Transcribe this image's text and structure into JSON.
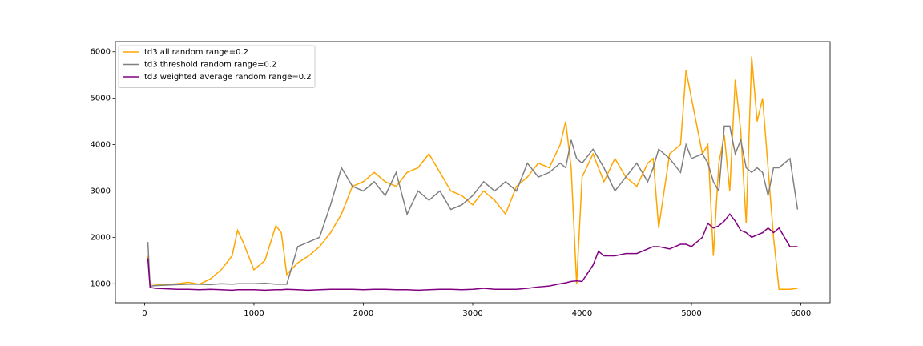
{
  "chart_data": {
    "type": "line",
    "x": [
      30,
      50,
      100,
      200,
      300,
      400,
      500,
      600,
      700,
      800,
      850,
      900,
      1000,
      1100,
      1200,
      1250,
      1300,
      1400,
      1500,
      1600,
      1700,
      1800,
      1900,
      2000,
      2100,
      2200,
      2300,
      2400,
      2500,
      2600,
      2700,
      2800,
      2900,
      3000,
      3100,
      3200,
      3300,
      3400,
      3500,
      3600,
      3700,
      3800,
      3850,
      3900,
      3950,
      4000,
      4100,
      4150,
      4200,
      4300,
      4400,
      4500,
      4600,
      4650,
      4700,
      4800,
      4900,
      4950,
      5000,
      5100,
      5150,
      5200,
      5250,
      5300,
      5350,
      5400,
      5450,
      5500,
      5550,
      5600,
      5650,
      5700,
      5750,
      5800,
      5900,
      5970
    ],
    "series": [
      {
        "name": "td3 all random range=0.2",
        "color": "#ffa500",
        "values": [
          1600,
          1000,
          990,
          980,
          1000,
          1030,
          990,
          1100,
          1300,
          1600,
          2150,
          1900,
          1300,
          1500,
          2250,
          2100,
          1200,
          1450,
          1600,
          1800,
          2100,
          2500,
          3100,
          3200,
          3400,
          3200,
          3100,
          3400,
          3500,
          3800,
          3400,
          3000,
          2900,
          2700,
          3000,
          2800,
          2500,
          3100,
          3300,
          3600,
          3500,
          4000,
          4500,
          3500,
          1000,
          3300,
          3800,
          3500,
          3200,
          3700,
          3300,
          3100,
          3600,
          3700,
          2200,
          3800,
          4000,
          5600,
          5000,
          3800,
          4000,
          1600,
          3600,
          4200,
          3000,
          5400,
          4300,
          2300,
          5900,
          4500,
          5000,
          3500,
          2000,
          880,
          880,
          900
        ]
      },
      {
        "name": "td3 threshold random range=0.2",
        "color": "#808080",
        "values": [
          1900,
          950,
          960,
          970,
          980,
          990,
          990,
          980,
          1000,
          990,
          1000,
          1000,
          1000,
          1010,
          990,
          990,
          990,
          1800,
          1900,
          2000,
          2700,
          3500,
          3100,
          3000,
          3200,
          2900,
          3400,
          2500,
          3000,
          2800,
          3000,
          2600,
          2700,
          2900,
          3200,
          3000,
          3200,
          3000,
          3600,
          3300,
          3400,
          3600,
          3500,
          4100,
          3700,
          3600,
          3900,
          3700,
          3500,
          3000,
          3300,
          3600,
          3200,
          3500,
          3900,
          3700,
          3400,
          4000,
          3700,
          3800,
          3600,
          3200,
          3000,
          4400,
          4400,
          3800,
          4100,
          3500,
          3400,
          3500,
          3400,
          2900,
          3500,
          3500,
          3700,
          2600
        ]
      },
      {
        "name": "td3 weighted average random range=0.2",
        "color": "#800080",
        "values": [
          1550,
          920,
          900,
          890,
          880,
          880,
          870,
          880,
          870,
          860,
          870,
          870,
          870,
          860,
          870,
          870,
          880,
          870,
          860,
          870,
          880,
          880,
          880,
          870,
          880,
          880,
          870,
          870,
          860,
          870,
          880,
          880,
          870,
          880,
          900,
          880,
          880,
          880,
          900,
          930,
          950,
          1000,
          1020,
          1050,
          1060,
          1050,
          1400,
          1700,
          1600,
          1600,
          1650,
          1650,
          1750,
          1800,
          1800,
          1750,
          1850,
          1850,
          1800,
          2000,
          2300,
          2200,
          2250,
          2350,
          2500,
          2350,
          2150,
          2100,
          2000,
          2050,
          2100,
          2200,
          2100,
          2200,
          1800,
          1800
        ]
      }
    ],
    "xlim": [
      -267,
      6267
    ],
    "ylim": [
      590,
      6220
    ],
    "xticks": [
      0,
      1000,
      2000,
      3000,
      4000,
      5000,
      6000
    ],
    "yticks": [
      1000,
      2000,
      3000,
      4000,
      5000,
      6000
    ],
    "grid": false,
    "legend": "upper left"
  }
}
